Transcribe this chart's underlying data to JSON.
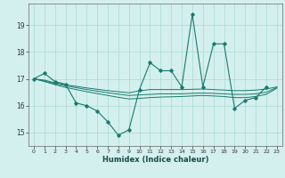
{
  "xlabel": "Humidex (Indice chaleur)",
  "x": [
    0,
    1,
    2,
    3,
    4,
    5,
    6,
    7,
    8,
    9,
    10,
    11,
    12,
    13,
    14,
    15,
    16,
    17,
    18,
    19,
    20,
    21,
    22,
    23
  ],
  "line1_x": [
    0,
    1,
    2,
    3,
    4,
    5,
    6,
    7,
    8,
    9,
    10,
    11,
    12,
    13,
    14,
    15,
    16,
    17,
    18,
    19,
    20,
    21,
    22
  ],
  "line1_y": [
    17.0,
    17.2,
    16.9,
    16.8,
    16.1,
    16.0,
    15.8,
    15.4,
    14.9,
    15.1,
    16.6,
    17.6,
    17.3,
    17.3,
    16.7,
    19.4,
    16.7,
    18.3,
    18.3,
    15.9,
    16.2,
    16.3,
    16.7
  ],
  "line2": [
    17.0,
    16.95,
    16.85,
    16.78,
    16.72,
    16.66,
    16.61,
    16.56,
    16.52,
    16.48,
    16.55,
    16.6,
    16.6,
    16.6,
    16.6,
    16.61,
    16.62,
    16.6,
    16.58,
    16.56,
    16.56,
    16.58,
    16.62,
    16.7
  ],
  "line3": [
    17.0,
    16.92,
    16.82,
    16.74,
    16.67,
    16.6,
    16.54,
    16.48,
    16.43,
    16.38,
    16.4,
    16.42,
    16.44,
    16.44,
    16.44,
    16.46,
    16.47,
    16.46,
    16.44,
    16.42,
    16.42,
    16.44,
    16.5,
    16.68
  ],
  "line4": [
    17.0,
    16.9,
    16.78,
    16.68,
    16.6,
    16.52,
    16.45,
    16.38,
    16.31,
    16.25,
    16.27,
    16.3,
    16.32,
    16.33,
    16.34,
    16.36,
    16.38,
    16.36,
    16.34,
    16.3,
    16.3,
    16.34,
    16.42,
    16.65
  ],
  "color": "#1a7a6e",
  "bg_color": "#d4f0ee",
  "grid_color": "#a8d8d4",
  "ylim": [
    14.5,
    19.8
  ],
  "yticks": [
    15,
    16,
    17,
    18,
    19
  ],
  "xlim": [
    -0.5,
    23.5
  ]
}
